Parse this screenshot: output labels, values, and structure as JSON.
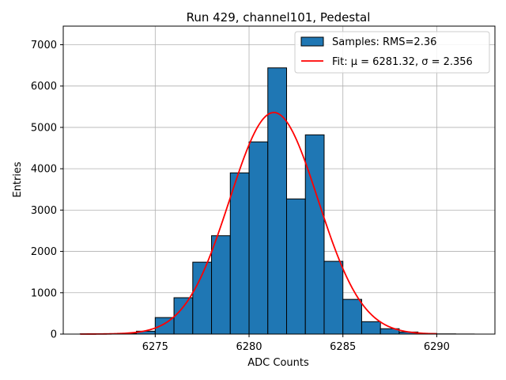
{
  "chart_data": {
    "type": "bar",
    "title": "Run 429, channel101, Pedestal",
    "xlabel": "ADC Counts",
    "ylabel": "Entries",
    "xlim": [
      6270.1,
      6293.1
    ],
    "ylim": [
      0,
      7450
    ],
    "xticks": [
      6275,
      6280,
      6285,
      6290
    ],
    "yticks": [
      0,
      1000,
      2000,
      3000,
      4000,
      5000,
      6000,
      7000
    ],
    "grid": true,
    "legend_position": "top-right",
    "bin_width": 1,
    "bins": [
      {
        "left": 6271,
        "value": 5
      },
      {
        "left": 6272,
        "value": 10
      },
      {
        "left": 6273,
        "value": 20
      },
      {
        "left": 6274,
        "value": 70
      },
      {
        "left": 6275,
        "value": 400
      },
      {
        "left": 6276,
        "value": 880
      },
      {
        "left": 6277,
        "value": 1740
      },
      {
        "left": 6278,
        "value": 2380
      },
      {
        "left": 6279,
        "value": 3900
      },
      {
        "left": 6280,
        "value": 4650
      },
      {
        "left": 6281,
        "value": 6440
      },
      {
        "left": 6282,
        "value": 3270
      },
      {
        "left": 6283,
        "value": 4820
      },
      {
        "left": 6284,
        "value": 1760
      },
      {
        "left": 6285,
        "value": 840
      },
      {
        "left": 6286,
        "value": 300
      },
      {
        "left": 6287,
        "value": 130
      },
      {
        "left": 6288,
        "value": 50
      },
      {
        "left": 6289,
        "value": 15
      },
      {
        "left": 6290,
        "value": 5
      },
      {
        "left": 6291,
        "value": 2
      }
    ],
    "fit": {
      "mu": 6281.32,
      "sigma": 2.356,
      "amplitude": 5360,
      "x_range": [
        6271,
        6290
      ]
    },
    "series": [
      {
        "name": "Samples: RMS=2.36",
        "kind": "histogram",
        "color": "#1f77b4"
      },
      {
        "name": "Fit: μ = 6281.32, σ = 2.356",
        "kind": "line",
        "color": "#ff0000"
      }
    ]
  }
}
